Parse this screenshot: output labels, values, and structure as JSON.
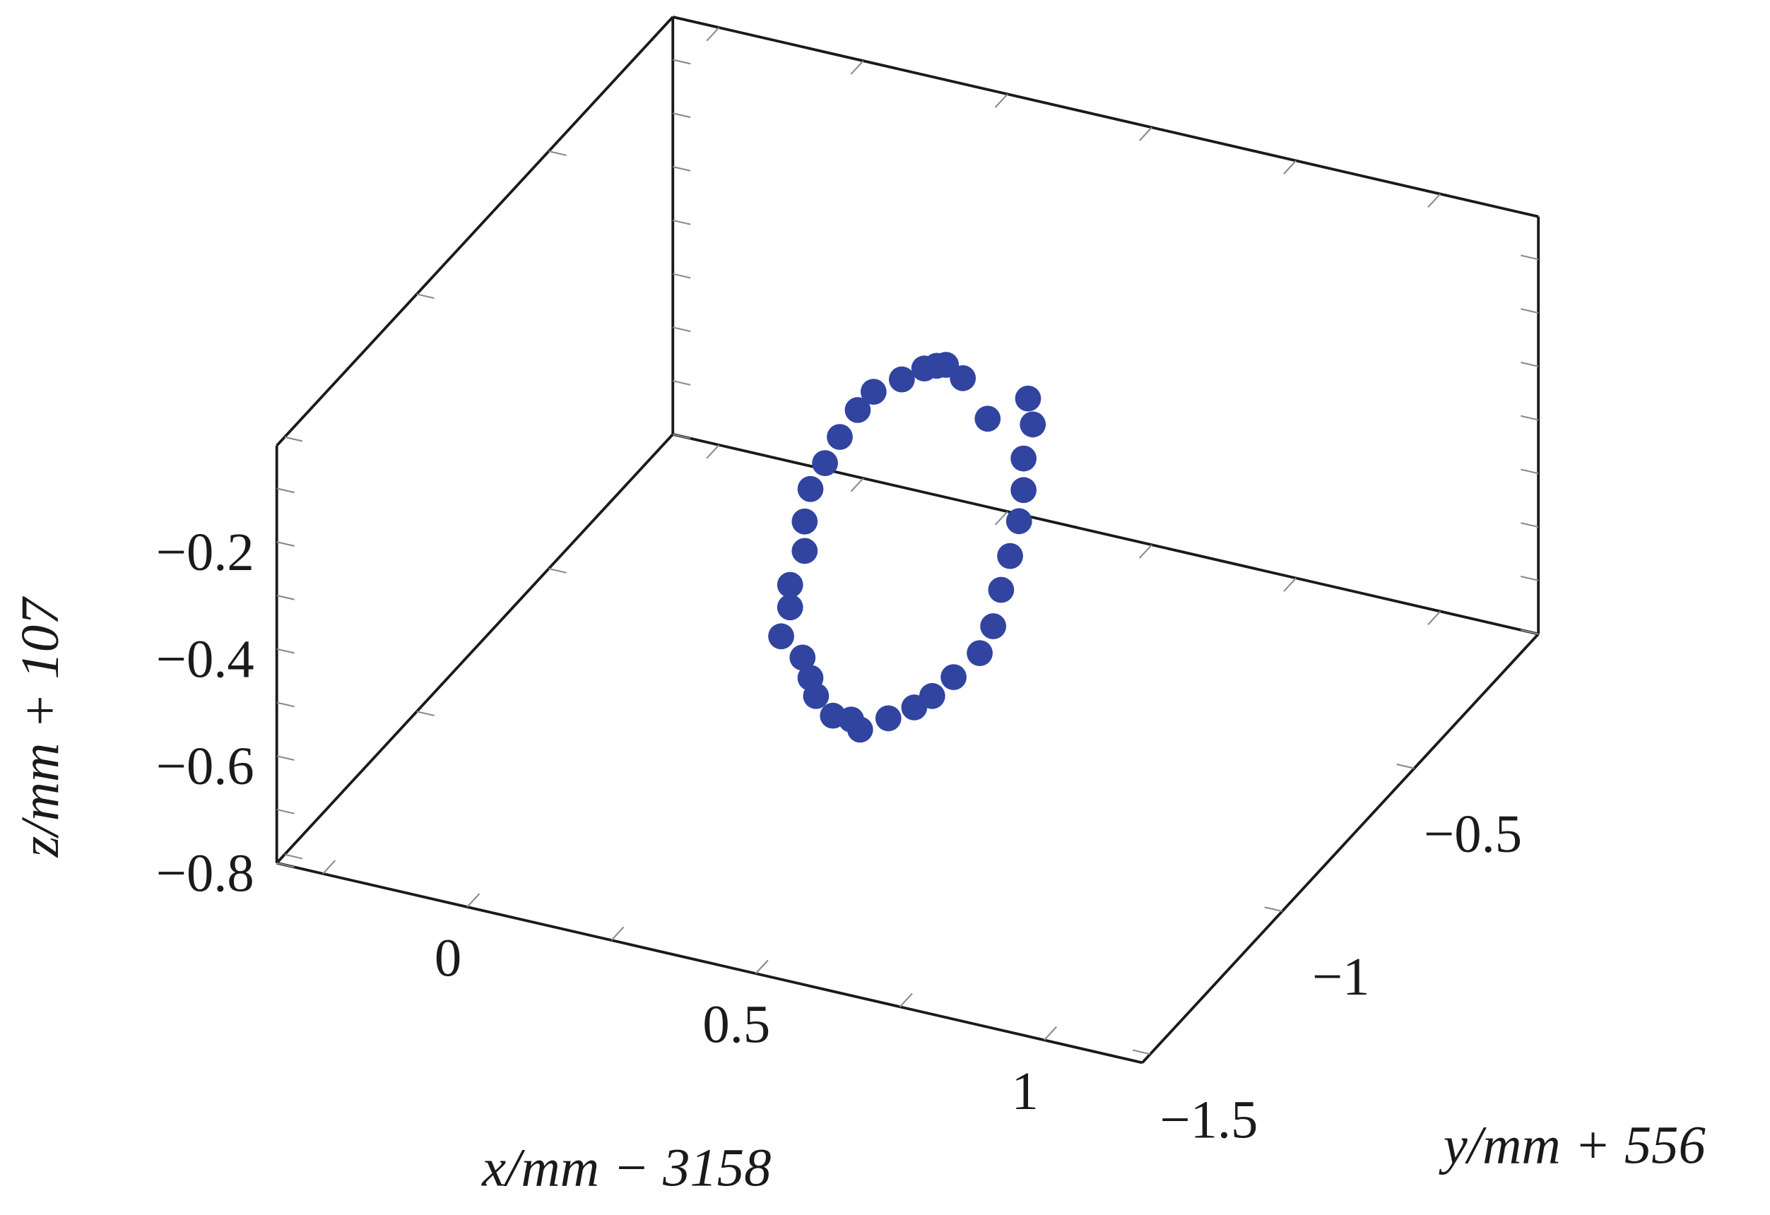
{
  "chart_data": {
    "type": "scatter3d",
    "xlabel": "x/mm − 3158",
    "ylabel": "y/mm + 556",
    "zlabel": "z/mm + 107",
    "color": "#3044a0",
    "xlim": [
      -0.33,
      1.17
    ],
    "ylim": [
      -1.53,
      -0.03
    ],
    "zlim": [
      -0.8,
      -0.02
    ],
    "xticks": [
      0,
      0.5,
      1
    ],
    "xminorticks": [
      -0.25,
      0.25,
      0.75
    ],
    "yticks": [
      {
        "value": -1.5,
        "label": "−1.5"
      },
      {
        "value": -1,
        "label": "−1"
      },
      {
        "value": -0.5,
        "label": "−0.5"
      }
    ],
    "zticks": [
      {
        "value": -0.8,
        "label": "−0.8"
      },
      {
        "value": -0.6,
        "label": "−0.6"
      },
      {
        "value": -0.4,
        "label": "−0.4"
      },
      {
        "value": -0.2,
        "label": "−0.2"
      }
    ],
    "zminorticks": [
      -0.7,
      -0.5,
      -0.3,
      -0.1
    ],
    "x": [
      0.4,
      0.4,
      0.4,
      0.4,
      0.4,
      0.4,
      0.4,
      0.4,
      0.4,
      0.4,
      0.4,
      0.4,
      0.4,
      0.4,
      0.4,
      0.4,
      0.4,
      0.4,
      0.4,
      0.4,
      0.4,
      0.4,
      0.4,
      0.4,
      0.4,
      0.4,
      0.4,
      0.4,
      0.4,
      0.4,
      0.4,
      0.4,
      0.4,
      0.4,
      0.4
    ],
    "y": [
      -1.215,
      -1.181,
      -1.181,
      -1.126,
      -1.126,
      -1.104,
      -1.049,
      -0.993,
      -0.925,
      -0.865,
      -0.758,
      -0.673,
      -0.626,
      -0.591,
      -0.527,
      -0.433,
      -0.28,
      -0.262,
      -0.297,
      -0.297,
      -0.314,
      -0.348,
      -0.382,
      -0.412,
      -0.463,
      -0.562,
      -0.643,
      -0.711,
      -0.809,
      -0.916,
      -0.95,
      -1.019,
      -1.083,
      -1.104,
      -1.134
    ],
    "z": [
      -0.363,
      -0.327,
      -0.285,
      -0.251,
      -0.196,
      -0.147,
      -0.128,
      -0.109,
      -0.095,
      -0.093,
      -0.127,
      -0.152,
      -0.172,
      -0.189,
      -0.248,
      -0.374,
      -0.418,
      -0.476,
      -0.521,
      -0.58,
      -0.629,
      -0.676,
      -0.721,
      -0.773,
      -0.796,
      -0.788,
      -0.78,
      -0.765,
      -0.733,
      -0.697,
      -0.66,
      -0.616,
      -0.545,
      -0.5,
      -0.446
    ]
  }
}
